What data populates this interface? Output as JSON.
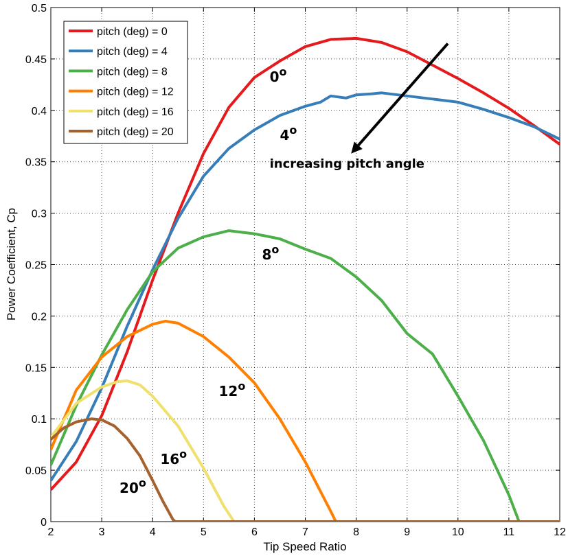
{
  "chart_data": {
    "type": "line",
    "title": "",
    "xlabel": "Tip Speed Ratio",
    "ylabel": "Power Coefficient, Cp",
    "xlim": [
      2,
      12
    ],
    "ylim": [
      0,
      0.5
    ],
    "xticks": [
      2,
      3,
      4,
      5,
      6,
      7,
      8,
      9,
      10,
      11,
      12
    ],
    "yticks": [
      0,
      0.05,
      0.1,
      0.15,
      0.2,
      0.25,
      0.3,
      0.35,
      0.4,
      0.45,
      0.5
    ],
    "xtick_labels": [
      "2",
      "3",
      "4",
      "5",
      "6",
      "7",
      "8",
      "9",
      "10",
      "11",
      "12"
    ],
    "ytick_labels": [
      "0",
      "0.05",
      "0.1",
      "0.15",
      "0.2",
      "0.25",
      "0.3",
      "0.35",
      "0.4",
      "0.45",
      "0.5"
    ],
    "grid": true,
    "legend_position": "top-left",
    "series": [
      {
        "name": "pitch (deg) = 0",
        "color": "#e41a1c",
        "x": [
          2.0,
          2.5,
          3.0,
          3.5,
          4.0,
          4.5,
          5.0,
          5.5,
          6.0,
          6.5,
          7.0,
          7.5,
          8.0,
          8.5,
          9.0,
          9.5,
          10.0,
          10.5,
          11.0,
          11.5,
          12.0
        ],
        "y": [
          0.031,
          0.058,
          0.103,
          0.165,
          0.235,
          0.3,
          0.358,
          0.403,
          0.432,
          0.448,
          0.462,
          0.469,
          0.47,
          0.466,
          0.457,
          0.444,
          0.431,
          0.417,
          0.402,
          0.385,
          0.367
        ]
      },
      {
        "name": "pitch (deg) = 4",
        "color": "#377eb8",
        "x": [
          2.0,
          2.5,
          3.0,
          3.5,
          4.0,
          4.5,
          5.0,
          5.5,
          6.0,
          6.5,
          7.0,
          7.3,
          7.5,
          7.8,
          8.0,
          8.3,
          8.5,
          9.0,
          9.5,
          10.0,
          10.5,
          11.0,
          11.5,
          12.0
        ],
        "y": [
          0.04,
          0.078,
          0.13,
          0.19,
          0.245,
          0.295,
          0.336,
          0.363,
          0.381,
          0.395,
          0.404,
          0.408,
          0.414,
          0.412,
          0.415,
          0.416,
          0.417,
          0.414,
          0.411,
          0.408,
          0.401,
          0.393,
          0.384,
          0.372
        ]
      },
      {
        "name": "pitch (deg) = 8",
        "color": "#4daf4a",
        "x": [
          2.0,
          2.5,
          3.0,
          3.5,
          4.0,
          4.5,
          5.0,
          5.5,
          6.0,
          6.5,
          7.0,
          7.5,
          8.0,
          8.5,
          9.0,
          9.5,
          10.0,
          10.5,
          11.0,
          11.2
        ],
        "y": [
          0.055,
          0.113,
          0.162,
          0.206,
          0.243,
          0.266,
          0.277,
          0.283,
          0.28,
          0.275,
          0.265,
          0.256,
          0.238,
          0.215,
          0.183,
          0.163,
          0.122,
          0.079,
          0.026,
          0.0
        ]
      },
      {
        "name": "pitch (deg) = 12",
        "color": "#ff7f00",
        "x": [
          2.0,
          2.5,
          3.0,
          3.5,
          4.0,
          4.25,
          4.5,
          5.0,
          5.5,
          6.0,
          6.5,
          7.0,
          7.5,
          7.6
        ],
        "y": [
          0.07,
          0.128,
          0.16,
          0.18,
          0.192,
          0.195,
          0.193,
          0.18,
          0.16,
          0.135,
          0.1,
          0.058,
          0.01,
          0.0
        ]
      },
      {
        "name": "pitch (deg) = 16",
        "color": "#f0e06e",
        "x": [
          2.0,
          2.5,
          3.0,
          3.3,
          3.5,
          3.75,
          4.0,
          4.5,
          5.0,
          5.4,
          5.6
        ],
        "y": [
          0.082,
          0.115,
          0.131,
          0.136,
          0.137,
          0.133,
          0.122,
          0.093,
          0.052,
          0.015,
          0.0
        ]
      },
      {
        "name": "pitch (deg) = 20",
        "color": "#a6622e",
        "x": [
          2.0,
          2.25,
          2.5,
          2.8,
          3.0,
          3.25,
          3.5,
          3.75,
          4.0,
          4.2,
          4.4,
          4.45
        ],
        "y": [
          0.08,
          0.091,
          0.097,
          0.1,
          0.099,
          0.093,
          0.081,
          0.064,
          0.04,
          0.02,
          0.002,
          0.0
        ]
      }
    ],
    "annotations": [
      {
        "text": "0",
        "sup": "o",
        "x": 6.3,
        "y": 0.428
      },
      {
        "text": "4",
        "sup": "o",
        "x": 6.5,
        "y": 0.371
      },
      {
        "text": "8",
        "sup": "o",
        "x": 6.15,
        "y": 0.255
      },
      {
        "text": "12",
        "sup": "o",
        "x": 5.3,
        "y": 0.122
      },
      {
        "text": "16",
        "sup": "o",
        "x": 4.15,
        "y": 0.056
      },
      {
        "text": "20",
        "sup": "o",
        "x": 3.35,
        "y": 0.028
      },
      {
        "text": "increasing pitch angle",
        "x": 6.3,
        "y": 0.344
      }
    ],
    "arrow": {
      "from": [
        9.8,
        0.465
      ],
      "to": [
        7.9,
        0.358
      ]
    }
  }
}
